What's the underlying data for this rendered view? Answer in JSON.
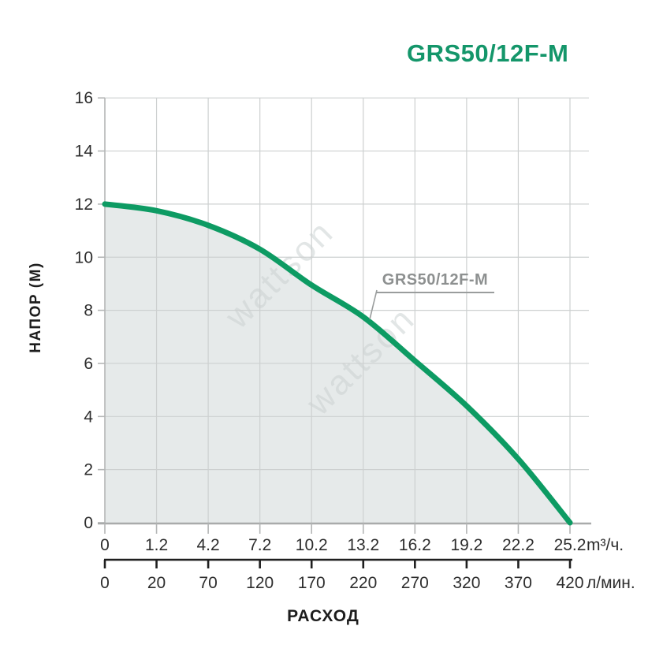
{
  "title": "GRS50/12F-M",
  "watermark": "wattson",
  "colors": {
    "brand_green": "#14966a",
    "curve_green": "#0d9b63",
    "area_fill": "#e6eaea",
    "grid": "#cdd0d0",
    "axis_gray": "#a9abab",
    "tick_gray": "#b4b6b6",
    "axis_black": "#1f1f1f",
    "tick_text": "#2d2d2d",
    "label_gray": "#8d9090",
    "watermark_gray": "#ccd2d2"
  },
  "chart_data": {
    "type": "line",
    "title": "GRS50/12F-M",
    "series_label": "GRS50/12F-M",
    "ylabel": "НАПОР (М)",
    "xlabel": "РАСХОД",
    "unit_m3h": "m³/ч.",
    "unit_lmin": "л/мин.",
    "x_ticks_m3h": [
      "0",
      "1.2",
      "4.2",
      "7.2",
      "10.2",
      "13.2",
      "16.2",
      "19.2",
      "22.2",
      "25.2"
    ],
    "x_ticks_lmin": [
      "0",
      "20",
      "70",
      "120",
      "170",
      "220",
      "270",
      "320",
      "370",
      "420"
    ],
    "y_ticks": [
      "16",
      "14",
      "12",
      "10",
      "8",
      "6",
      "4",
      "2",
      "0"
    ],
    "series": [
      {
        "name": "GRS50/12F-M",
        "x_m3h": [
          0,
          1.2,
          4.2,
          7.2,
          10.2,
          13.2,
          16.2,
          19.2,
          22.2,
          25.2
        ],
        "x_lmin": [
          0,
          20,
          70,
          120,
          170,
          220,
          270,
          320,
          370,
          420
        ],
        "head_m": [
          12,
          11.75,
          11.2,
          10.3,
          8.95,
          7.75,
          6.1,
          4.4,
          2.4,
          0
        ]
      }
    ],
    "ylim": [
      0,
      16
    ],
    "tick_spacing": "uniform",
    "grid": true,
    "area_filled": true,
    "legend_position": "annotation-on-curve"
  }
}
